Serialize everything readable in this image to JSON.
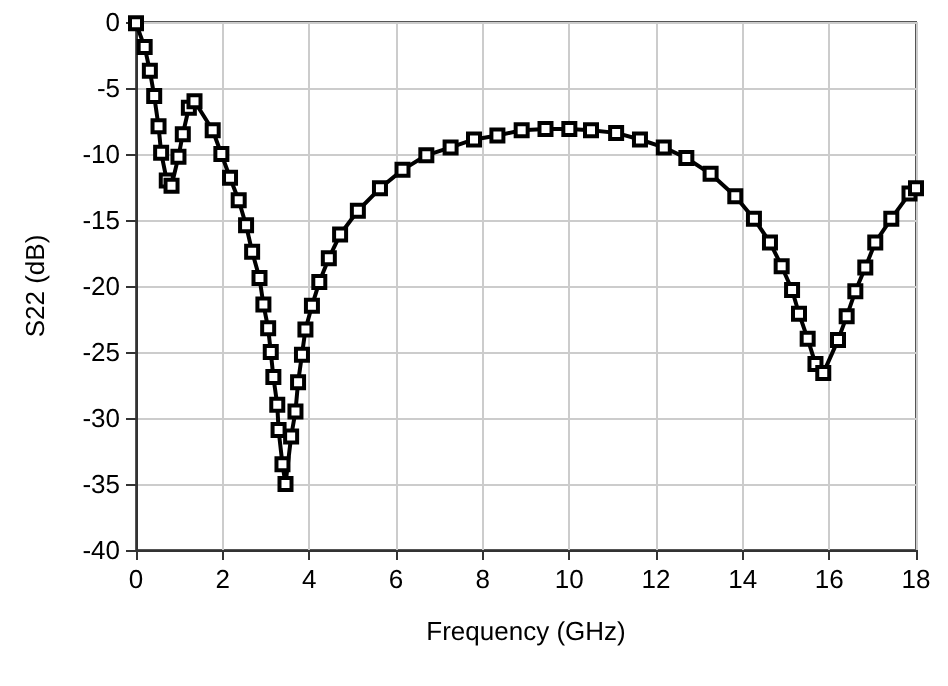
{
  "chart_data": {
    "type": "line",
    "xlabel": "Frequency (GHz)",
    "ylabel": "S22 (dB)",
    "x": [
      0,
      0.2,
      0.32,
      0.42,
      0.52,
      0.58,
      0.71,
      0.82,
      0.98,
      1.08,
      1.22,
      1.35,
      1.77,
      1.97,
      2.17,
      2.37,
      2.54,
      2.68,
      2.85,
      2.94,
      3.05,
      3.11,
      3.17,
      3.26,
      3.29,
      3.38,
      3.45,
      3.58,
      3.68,
      3.74,
      3.83,
      3.91,
      4.06,
      4.23,
      4.45,
      4.71,
      5.12,
      5.63,
      6.15,
      6.7,
      7.26,
      7.8,
      8.34,
      8.9,
      9.45,
      10,
      10.5,
      11.08,
      11.63,
      12.18,
      12.7,
      13.26,
      13.83,
      14.26,
      14.63,
      14.9,
      15.14,
      15.3,
      15.5,
      15.68,
      15.86,
      16.2,
      16.4,
      16.6,
      16.83,
      17.06,
      17.43,
      17.85,
      18
    ],
    "series": [
      {
        "color": "#000000",
        "values": [
          -0.1,
          -1.9,
          -3.7,
          -5.6,
          -7.9,
          -9.9,
          -12,
          -12.4,
          -10.2,
          -8.5,
          -6.5,
          -6,
          -8.2,
          -10,
          -11.8,
          -13.5,
          -15.4,
          -17.4,
          -19.4,
          -21.4,
          -23.2,
          -25,
          -26.9,
          -29,
          -30.9,
          -33.5,
          -35,
          -31.4,
          -29.5,
          -27.3,
          -25.2,
          -23.3,
          -21.5,
          -19.7,
          -17.9,
          -16.1,
          -14.3,
          -12.6,
          -11.2,
          -10.1,
          -9.5,
          -8.9,
          -8.6,
          -8.2,
          -8.1,
          -8.1,
          -8.2,
          -8.4,
          -8.9,
          -9.5,
          -10.3,
          -11.5,
          -13.2,
          -14.9,
          -16.7,
          -18.5,
          -20.3,
          -22.1,
          -24,
          -25.9,
          -26.6,
          -24.1,
          -22.3,
          -20.4,
          -18.6,
          -16.7,
          -14.9,
          -13,
          -12.6
        ]
      }
    ],
    "xlim": [
      0,
      18
    ],
    "xticks": [
      0,
      2,
      4,
      6,
      8,
      10,
      12,
      14,
      16,
      18
    ],
    "ylim": [
      -40,
      0
    ],
    "yticks": [
      -40,
      -35,
      -30,
      -25,
      -20,
      -15,
      -10,
      -5,
      0
    ],
    "grid": true,
    "marker": "square",
    "line_style": "solid"
  }
}
